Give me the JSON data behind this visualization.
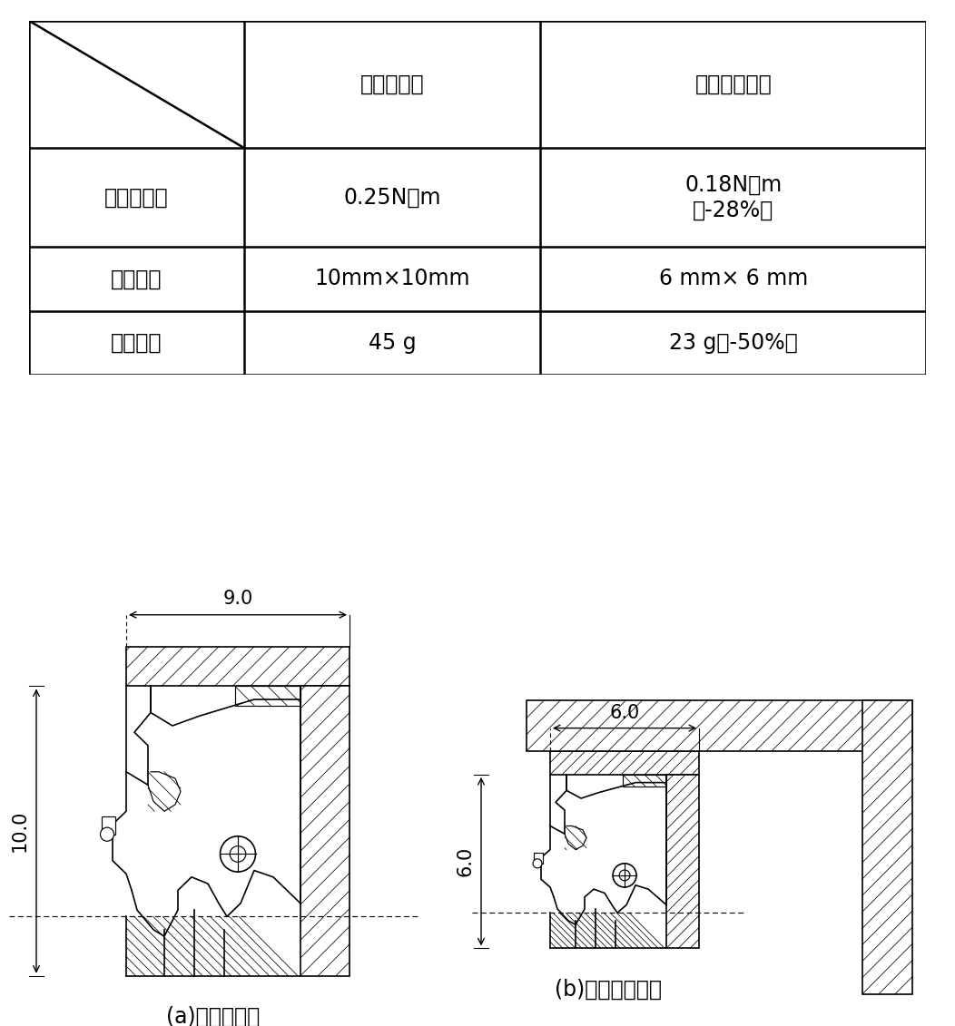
{
  "table_headers": [
    "",
    "従来シール",
    "低摩擦シール"
  ],
  "row0_label": "摩擦トルク",
  "row0_col1": "0.25N・m",
  "row0_col2": "0.18N・m\n（-28%）",
  "row1_label": "スペース",
  "row1_col1": "10mm×10mm",
  "row1_col2": "6 mm× 6 mm",
  "row2_label": "質　　量",
  "row2_col1": "45 g",
  "row2_col2": "23 g（-50%）",
  "label_a": "(a)従来シール",
  "label_b": "(b)低摩擦シール",
  "dim_a_width": "9.0",
  "dim_a_height": "10.0",
  "dim_b_width": "6.0",
  "dim_b_height": "6.0",
  "bg_color": "#ffffff",
  "lc": "#000000",
  "fs_table": 17,
  "fs_label": 17,
  "fs_dim": 15
}
